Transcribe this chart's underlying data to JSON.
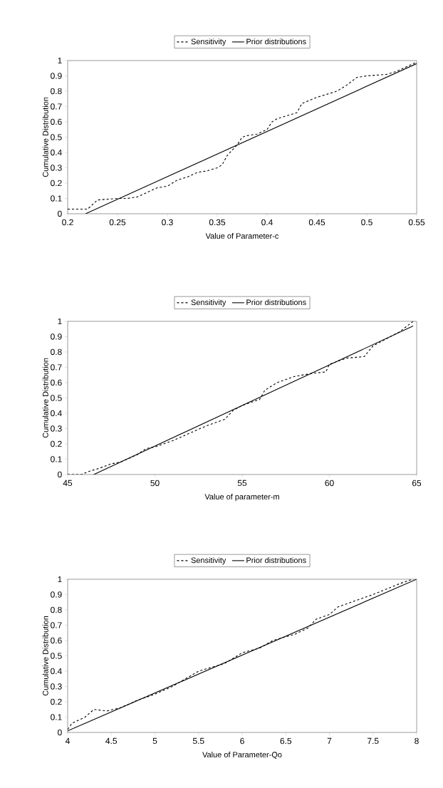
{
  "chart_data": [
    {
      "type": "line",
      "xlabel": "Value of Parameter-c",
      "ylabel": "Cumulative Distribution",
      "legend": "top",
      "xlim": [
        0.2,
        0.55
      ],
      "ylim": [
        0,
        1
      ],
      "xticks": [
        0.2,
        0.25,
        0.3,
        0.35,
        0.4,
        0.45,
        0.5,
        0.55
      ],
      "yticks": [
        0,
        0.1,
        0.2,
        0.3,
        0.4,
        0.5,
        0.6,
        0.7,
        0.8,
        0.9,
        1
      ],
      "series": [
        {
          "name": "Sensitivity",
          "color": "#000000",
          "line_style": "dashed",
          "x": [
            0.2,
            0.22,
            0.225,
            0.23,
            0.24,
            0.25,
            0.26,
            0.27,
            0.28,
            0.29,
            0.3,
            0.31,
            0.32,
            0.33,
            0.34,
            0.35,
            0.355,
            0.36,
            0.37,
            0.375,
            0.38,
            0.39,
            0.4,
            0.405,
            0.41,
            0.42,
            0.43,
            0.435,
            0.45,
            0.47,
            0.48,
            0.49,
            0.5,
            0.52,
            0.53,
            0.55
          ],
          "values": [
            0.03,
            0.03,
            0.06,
            0.09,
            0.095,
            0.1,
            0.1,
            0.11,
            0.14,
            0.17,
            0.18,
            0.22,
            0.24,
            0.27,
            0.28,
            0.3,
            0.32,
            0.38,
            0.45,
            0.5,
            0.51,
            0.52,
            0.55,
            0.6,
            0.62,
            0.64,
            0.66,
            0.72,
            0.76,
            0.8,
            0.84,
            0.89,
            0.9,
            0.91,
            0.93,
            0.99
          ]
        },
        {
          "name": "Prior distributions",
          "color": "#000000",
          "line_style": "solid",
          "x": [
            0.218,
            0.55
          ],
          "values": [
            0,
            0.98
          ]
        }
      ]
    },
    {
      "type": "line",
      "xlabel": "Value of parameter-m",
      "ylabel": "Cumulative Distribution",
      "legend": "top",
      "xlim": [
        45,
        65
      ],
      "ylim": [
        0,
        1
      ],
      "xticks": [
        45,
        50,
        55,
        60,
        65
      ],
      "yticks": [
        0,
        0.1,
        0.2,
        0.3,
        0.4,
        0.5,
        0.6,
        0.7,
        0.8,
        0.9,
        1
      ],
      "series": [
        {
          "name": "Sensitivity",
          "color": "#000000",
          "line_style": "dashed",
          "x": [
            45,
            45.8,
            46.2,
            46.8,
            47.5,
            48,
            49,
            49.5,
            50,
            51,
            52,
            53,
            54,
            54.5,
            55,
            56,
            56.3,
            57,
            58,
            59,
            59.8,
            60,
            61,
            62,
            62.5,
            63,
            64,
            64.8
          ],
          "values": [
            0,
            0,
            0.02,
            0.04,
            0.07,
            0.08,
            0.13,
            0.17,
            0.18,
            0.22,
            0.27,
            0.32,
            0.36,
            0.42,
            0.45,
            0.49,
            0.55,
            0.6,
            0.64,
            0.66,
            0.67,
            0.72,
            0.76,
            0.77,
            0.84,
            0.87,
            0.93,
            1.0
          ]
        },
        {
          "name": "Prior distributions",
          "color": "#000000",
          "line_style": "solid",
          "x": [
            46.5,
            64.8
          ],
          "values": [
            0,
            0.97
          ]
        }
      ]
    },
    {
      "type": "line",
      "xlabel": "Value of Parameter-Qo",
      "ylabel": "Cumulative Distribution",
      "legend": "top",
      "xlim": [
        4,
        8
      ],
      "ylim": [
        0,
        1
      ],
      "xticks": [
        4,
        4.5,
        5,
        5.5,
        6,
        6.5,
        7,
        7.5,
        8
      ],
      "yticks": [
        0,
        0.1,
        0.2,
        0.3,
        0.4,
        0.5,
        0.6,
        0.7,
        0.8,
        0.9,
        1
      ],
      "series": [
        {
          "name": "Sensitivity",
          "color": "#000000",
          "line_style": "dashed",
          "x": [
            4,
            4.05,
            4.2,
            4.3,
            4.45,
            4.6,
            4.8,
            5,
            5.2,
            5.5,
            5.8,
            6,
            6.2,
            6.35,
            6.6,
            6.75,
            6.85,
            7,
            7.1,
            7.5,
            7.8,
            7.95
          ],
          "values": [
            0.02,
            0.06,
            0.1,
            0.15,
            0.14,
            0.16,
            0.21,
            0.25,
            0.3,
            0.4,
            0.45,
            0.52,
            0.55,
            0.6,
            0.64,
            0.68,
            0.74,
            0.77,
            0.82,
            0.9,
            0.97,
            1.0
          ]
        },
        {
          "name": "Prior distributions",
          "color": "#000000",
          "line_style": "solid",
          "x": [
            4,
            8
          ],
          "values": [
            0.01,
            1
          ]
        }
      ]
    }
  ]
}
